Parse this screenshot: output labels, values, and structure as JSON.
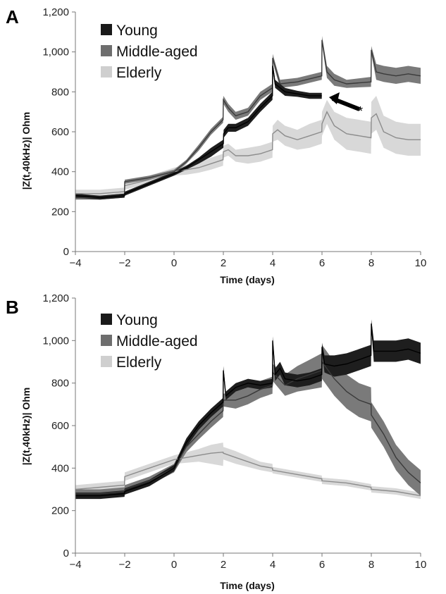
{
  "chart_data": [
    {
      "panel": "A",
      "type": "line",
      "xlabel": "Time (days)",
      "ylabel": "|Z(t,40kHz)| Ohm",
      "xlim": [
        -4,
        10
      ],
      "ylim": [
        0,
        1200
      ],
      "xticks": [
        "−4",
        "−2",
        "0",
        "2",
        "4",
        "6",
        "8",
        "10"
      ],
      "yticks": [
        "0",
        "200",
        "400",
        "600",
        "800",
        "1,000",
        "1,200"
      ],
      "grid": false,
      "legend": "top-left",
      "annotation": "*",
      "colors": {
        "Young": "#1a1a1a",
        "Middle-aged": "#6e6e6e",
        "Elderly": "#cfcfcf"
      },
      "series": [
        {
          "name": "Young",
          "x": [
            -4,
            -3,
            -2.01,
            -2,
            -1,
            0,
            0.5,
            1,
            1.5,
            2.0,
            2.01,
            2.2,
            2.5,
            3,
            3.5,
            3.99,
            4.0,
            4.1,
            4.5,
            5,
            5.5,
            5.99
          ],
          "y": [
            280,
            270,
            280,
            290,
            340,
            390,
            420,
            460,
            500,
            540,
            590,
            620,
            620,
            650,
            720,
            780,
            930,
            840,
            800,
            790,
            780,
            780
          ],
          "lower": [
            270,
            260,
            270,
            280,
            330,
            380,
            410,
            440,
            475,
            520,
            570,
            600,
            600,
            630,
            700,
            760,
            910,
            820,
            780,
            775,
            765,
            765
          ],
          "upper": [
            290,
            280,
            290,
            300,
            350,
            400,
            430,
            470,
            520,
            560,
            610,
            640,
            640,
            670,
            740,
            800,
            950,
            860,
            820,
            805,
            795,
            795
          ]
        },
        {
          "name": "Middle-aged",
          "x": [
            -4,
            -3,
            -2.01,
            -2,
            -1,
            0,
            0.5,
            1,
            1.5,
            1.99,
            2.0,
            2.2,
            2.5,
            3,
            3.5,
            3.99,
            4.0,
            4.3,
            5,
            5.99,
            6.0,
            6.2,
            6.5,
            7,
            7.99,
            8.0,
            8.2,
            8.5,
            9,
            9.5,
            10
          ],
          "y": [
            270,
            270,
            280,
            350,
            370,
            400,
            450,
            520,
            600,
            660,
            760,
            720,
            680,
            700,
            780,
            820,
            970,
            840,
            850,
            880,
            1060,
            900,
            860,
            840,
            850,
            1010,
            900,
            890,
            880,
            890,
            880
          ],
          "lower": [
            260,
            260,
            270,
            340,
            360,
            390,
            440,
            505,
            585,
            645,
            740,
            700,
            660,
            680,
            760,
            800,
            950,
            820,
            830,
            860,
            1040,
            870,
            830,
            820,
            825,
            990,
            860,
            850,
            840,
            850,
            840
          ],
          "upper": [
            280,
            280,
            290,
            360,
            380,
            410,
            460,
            535,
            615,
            675,
            780,
            740,
            700,
            720,
            800,
            840,
            990,
            860,
            870,
            900,
            1080,
            930,
            890,
            860,
            875,
            1030,
            940,
            930,
            920,
            930,
            920
          ]
        },
        {
          "name": "Elderly",
          "x": [
            -4,
            -3,
            -2.01,
            -2,
            -1,
            0,
            0.5,
            1,
            1.5,
            1.99,
            2.0,
            2.2,
            2.5,
            3,
            3.5,
            3.99,
            4.0,
            4.2,
            4.5,
            5,
            5.5,
            5.99,
            6.0,
            6.2,
            6.5,
            7,
            7.5,
            7.99,
            8.0,
            8.2,
            8.5,
            9,
            9.5,
            10
          ],
          "y": [
            290,
            290,
            300,
            330,
            360,
            400,
            410,
            420,
            440,
            460,
            500,
            510,
            480,
            480,
            490,
            510,
            590,
            610,
            580,
            560,
            580,
            600,
            640,
            700,
            630,
            590,
            580,
            570,
            670,
            690,
            600,
            570,
            560,
            560
          ],
          "lower": [
            270,
            270,
            280,
            310,
            340,
            380,
            385,
            395,
            410,
            430,
            470,
            480,
            450,
            440,
            450,
            470,
            550,
            560,
            530,
            510,
            520,
            540,
            580,
            640,
            560,
            510,
            500,
            490,
            590,
            610,
            520,
            490,
            480,
            480
          ],
          "upper": [
            310,
            310,
            320,
            350,
            380,
            420,
            435,
            445,
            470,
            490,
            530,
            540,
            510,
            520,
            530,
            550,
            630,
            660,
            630,
            610,
            640,
            660,
            700,
            760,
            700,
            670,
            660,
            650,
            750,
            780,
            680,
            650,
            640,
            640
          ]
        }
      ]
    },
    {
      "panel": "B",
      "type": "line",
      "xlabel": "Time (days)",
      "ylabel": "|Z(t,40kHz)| Ohm",
      "xlim": [
        -4,
        10
      ],
      "ylim": [
        0,
        1200
      ],
      "xticks": [
        "−4",
        "−2",
        "0",
        "2",
        "4",
        "6",
        "8",
        "10"
      ],
      "yticks": [
        "0",
        "200",
        "400",
        "600",
        "800",
        "1,000",
        "1,200"
      ],
      "grid": false,
      "legend": "top-left",
      "colors": {
        "Young": "#1a1a1a",
        "Middle-aged": "#6e6e6e",
        "Elderly": "#cfcfcf"
      },
      "series": [
        {
          "name": "Young",
          "x": [
            -4,
            -3,
            -2.01,
            -2,
            -1,
            0,
            0.5,
            1,
            1.5,
            1.99,
            2.0,
            2.1,
            2.5,
            3,
            3.5,
            3.99,
            4.0,
            4.1,
            4.3,
            4.5,
            5,
            5.5,
            5.99,
            6.0,
            6.1,
            6.5,
            7,
            7.5,
            7.99,
            8.0,
            8.1,
            8.5,
            9,
            9.5,
            10
          ],
          "y": [
            270,
            270,
            280,
            290,
            330,
            400,
            520,
            600,
            660,
            710,
            860,
            740,
            780,
            800,
            790,
            800,
            1000,
            840,
            870,
            820,
            810,
            820,
            840,
            970,
            890,
            880,
            890,
            910,
            930,
            1080,
            950,
            950,
            950,
            960,
            940
          ],
          "lower": [
            255,
            255,
            265,
            275,
            315,
            385,
            500,
            580,
            640,
            690,
            840,
            720,
            760,
            780,
            770,
            780,
            980,
            810,
            840,
            790,
            780,
            790,
            810,
            950,
            850,
            830,
            840,
            860,
            880,
            1060,
            900,
            900,
            900,
            910,
            890
          ],
          "upper": [
            285,
            285,
            295,
            305,
            345,
            415,
            540,
            620,
            680,
            730,
            880,
            760,
            800,
            820,
            810,
            820,
            1020,
            870,
            900,
            850,
            840,
            850,
            870,
            990,
            930,
            930,
            940,
            960,
            980,
            1100,
            1000,
            1000,
            1000,
            1010,
            990
          ]
        },
        {
          "name": "Middle-aged",
          "x": [
            -4,
            -3,
            -2.01,
            -2,
            -1,
            0,
            0.5,
            1,
            1.5,
            1.99,
            2.0,
            2.5,
            3,
            3.5,
            3.99,
            4.0,
            4.5,
            5,
            5.5,
            5.99,
            6.0,
            6.5,
            7,
            7.5,
            7.99,
            8.0,
            8.5,
            9,
            9.5,
            10
          ],
          "y": [
            280,
            280,
            290,
            300,
            340,
            400,
            500,
            560,
            620,
            670,
            720,
            720,
            740,
            770,
            790,
            850,
            790,
            820,
            840,
            860,
            900,
            820,
            760,
            720,
            700,
            650,
            560,
            450,
            380,
            330
          ],
          "lower": [
            260,
            260,
            270,
            280,
            320,
            380,
            475,
            535,
            590,
            640,
            690,
            680,
            700,
            730,
            750,
            810,
            740,
            760,
            770,
            780,
            820,
            740,
            680,
            640,
            620,
            590,
            500,
            390,
            320,
            270
          ],
          "upper": [
            300,
            300,
            310,
            320,
            360,
            420,
            525,
            585,
            650,
            700,
            750,
            760,
            780,
            810,
            830,
            890,
            840,
            880,
            910,
            940,
            980,
            900,
            840,
            800,
            780,
            710,
            620,
            510,
            440,
            390
          ]
        },
        {
          "name": "Elderly",
          "x": [
            -4,
            -3,
            -2.01,
            -2,
            -1,
            0,
            0.5,
            1,
            1.5,
            1.99,
            2.0,
            2.5,
            3,
            3.5,
            3.99,
            4.0,
            5,
            5.99,
            6.0,
            7,
            7.99,
            8.0,
            9,
            10
          ],
          "y": [
            300,
            310,
            320,
            360,
            400,
            440,
            450,
            460,
            470,
            475,
            470,
            450,
            430,
            410,
            400,
            390,
            370,
            350,
            340,
            330,
            310,
            300,
            290,
            270
          ],
          "lower": [
            280,
            290,
            300,
            340,
            380,
            420,
            425,
            430,
            420,
            410,
            440,
            420,
            405,
            390,
            380,
            375,
            355,
            335,
            325,
            315,
            295,
            285,
            275,
            255
          ],
          "upper": [
            320,
            330,
            340,
            380,
            420,
            460,
            475,
            490,
            510,
            520,
            500,
            480,
            455,
            430,
            420,
            405,
            385,
            365,
            355,
            345,
            325,
            315,
            305,
            285
          ]
        }
      ]
    }
  ]
}
